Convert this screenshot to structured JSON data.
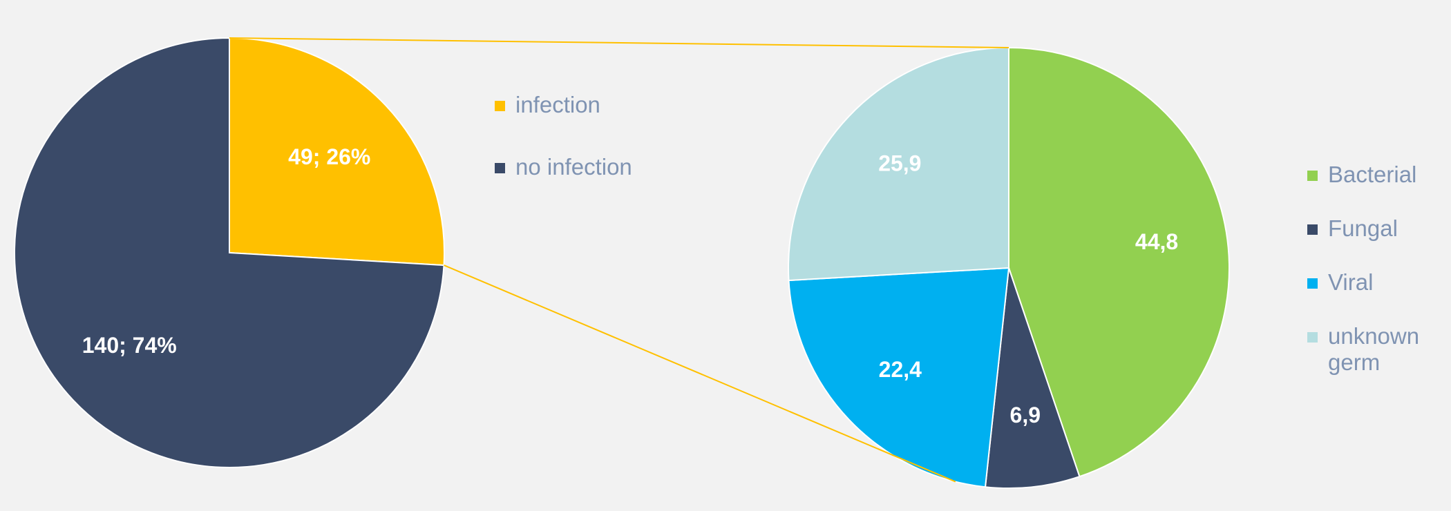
{
  "chart_data": [
    {
      "type": "pie",
      "categories": [
        "infection",
        "no infection"
      ],
      "values": [
        49,
        140
      ],
      "value_labels": [
        "49; 26%",
        "140; 74%"
      ],
      "colors": [
        "#FFC000",
        "#3A4A68"
      ]
    },
    {
      "type": "pie",
      "categories": [
        "Bacterial",
        "Fungal",
        "Viral",
        "unknown germ"
      ],
      "values": [
        44.8,
        6.9,
        22.4,
        25.9
      ],
      "value_labels": [
        "44,8",
        "6,9",
        "22,4",
        "25,9"
      ],
      "colors": [
        "#92D050",
        "#3A4A68",
        "#00B0F0",
        "#B4DDE0"
      ]
    }
  ]
}
